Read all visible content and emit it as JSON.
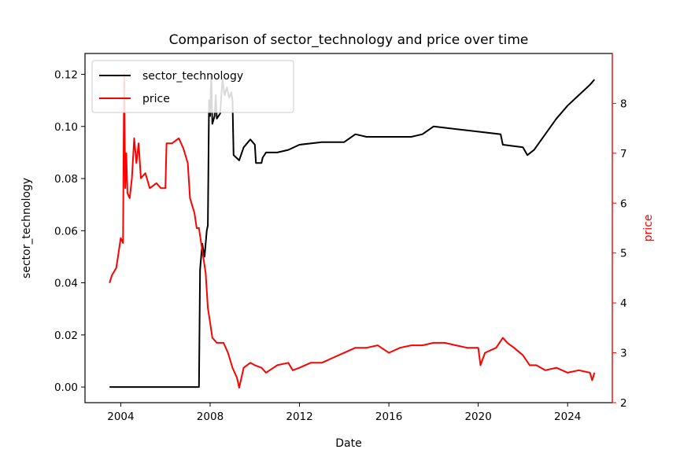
{
  "chart_data": {
    "type": "line",
    "title": "Comparison of sector_technology and price over time",
    "xlabel": "Date",
    "ylabel_left": "sector_technology",
    "ylabel_right": "price",
    "xlim": [
      2002.4,
      2026.0
    ],
    "ylim_left": [
      -0.006,
      0.128
    ],
    "ylim_right": [
      2.0,
      9.0
    ],
    "x_ticks": [
      2004,
      2008,
      2012,
      2016,
      2020,
      2024
    ],
    "x_tick_labels": [
      "2004",
      "2008",
      "2012",
      "2016",
      "2020",
      "2024"
    ],
    "y_left_ticks": [
      0.0,
      0.02,
      0.04,
      0.06,
      0.08,
      0.1,
      0.12
    ],
    "y_left_tick_labels": [
      "0.00",
      "0.02",
      "0.04",
      "0.06",
      "0.08",
      "0.10",
      "0.12"
    ],
    "y_right_ticks": [
      2,
      3,
      4,
      5,
      6,
      7,
      8
    ],
    "y_right_tick_labels": [
      "2",
      "3",
      "4",
      "5",
      "6",
      "7",
      "8"
    ],
    "grid": false,
    "legend_position": "top-left",
    "colors": {
      "sector_technology": "#000000",
      "price": "#ff0000",
      "right_axis": "#ff0000"
    },
    "series": [
      {
        "name": "sector_technology",
        "axis": "left",
        "color": "#000000",
        "points": [
          [
            2003.5,
            0.0
          ],
          [
            2007.5,
            0.0
          ],
          [
            2007.55,
            0.045
          ],
          [
            2007.65,
            0.055
          ],
          [
            2007.75,
            0.05
          ],
          [
            2007.85,
            0.06
          ],
          [
            2007.9,
            0.062
          ],
          [
            2007.95,
            0.11
          ],
          [
            2008.0,
            0.104
          ],
          [
            2008.05,
            0.12
          ],
          [
            2008.1,
            0.101
          ],
          [
            2008.2,
            0.104
          ],
          [
            2008.25,
            0.112
          ],
          [
            2008.3,
            0.103
          ],
          [
            2008.45,
            0.105
          ],
          [
            2008.55,
            0.118
          ],
          [
            2008.65,
            0.112
          ],
          [
            2008.75,
            0.115
          ],
          [
            2008.85,
            0.111
          ],
          [
            2008.95,
            0.113
          ],
          [
            2009.0,
            0.11
          ],
          [
            2009.05,
            0.089
          ],
          [
            2009.3,
            0.087
          ],
          [
            2009.5,
            0.092
          ],
          [
            2009.8,
            0.095
          ],
          [
            2010.0,
            0.093
          ],
          [
            2010.05,
            0.086
          ],
          [
            2010.3,
            0.086
          ],
          [
            2010.35,
            0.088
          ],
          [
            2010.5,
            0.09
          ],
          [
            2011.0,
            0.09
          ],
          [
            2011.5,
            0.091
          ],
          [
            2012.0,
            0.093
          ],
          [
            2013.0,
            0.094
          ],
          [
            2014.0,
            0.094
          ],
          [
            2014.5,
            0.097
          ],
          [
            2015.0,
            0.096
          ],
          [
            2016.0,
            0.096
          ],
          [
            2017.0,
            0.096
          ],
          [
            2017.5,
            0.097
          ],
          [
            2018.0,
            0.1
          ],
          [
            2019.0,
            0.099
          ],
          [
            2020.0,
            0.098
          ],
          [
            2021.0,
            0.097
          ],
          [
            2021.1,
            0.093
          ],
          [
            2022.0,
            0.092
          ],
          [
            2022.2,
            0.089
          ],
          [
            2022.5,
            0.091
          ],
          [
            2023.0,
            0.097
          ],
          [
            2023.5,
            0.103
          ],
          [
            2024.0,
            0.108
          ],
          [
            2024.5,
            0.112
          ],
          [
            2025.0,
            0.116
          ],
          [
            2025.2,
            0.118
          ]
        ]
      },
      {
        "name": "price",
        "axis": "right",
        "color": "#ff0000",
        "points": [
          [
            2003.5,
            4.4
          ],
          [
            2003.6,
            4.55
          ],
          [
            2003.8,
            4.7
          ],
          [
            2003.9,
            5.0
          ],
          [
            2004.0,
            5.3
          ],
          [
            2004.1,
            5.2
          ],
          [
            2004.15,
            8.6
          ],
          [
            2004.2,
            6.3
          ],
          [
            2004.25,
            7.0
          ],
          [
            2004.3,
            6.2
          ],
          [
            2004.4,
            6.1
          ],
          [
            2004.5,
            6.5
          ],
          [
            2004.6,
            7.3
          ],
          [
            2004.7,
            6.8
          ],
          [
            2004.8,
            7.2
          ],
          [
            2004.9,
            6.5
          ],
          [
            2005.1,
            6.6
          ],
          [
            2005.3,
            6.3
          ],
          [
            2005.6,
            6.4
          ],
          [
            2005.8,
            6.3
          ],
          [
            2006.0,
            6.3
          ],
          [
            2006.05,
            7.2
          ],
          [
            2006.3,
            7.2
          ],
          [
            2006.6,
            7.3
          ],
          [
            2006.8,
            7.1
          ],
          [
            2007.0,
            6.8
          ],
          [
            2007.1,
            6.1
          ],
          [
            2007.3,
            5.8
          ],
          [
            2007.4,
            5.5
          ],
          [
            2007.5,
            5.5
          ],
          [
            2007.6,
            5.2
          ],
          [
            2007.7,
            4.9
          ],
          [
            2007.8,
            4.6
          ],
          [
            2007.9,
            3.9
          ],
          [
            2008.0,
            3.6
          ],
          [
            2008.1,
            3.3
          ],
          [
            2008.3,
            3.2
          ],
          [
            2008.6,
            3.2
          ],
          [
            2008.8,
            3.0
          ],
          [
            2009.0,
            2.7
          ],
          [
            2009.2,
            2.5
          ],
          [
            2009.3,
            2.3
          ],
          [
            2009.5,
            2.7
          ],
          [
            2009.8,
            2.8
          ],
          [
            2010.0,
            2.75
          ],
          [
            2010.3,
            2.7
          ],
          [
            2010.5,
            2.6
          ],
          [
            2011.0,
            2.75
          ],
          [
            2011.5,
            2.8
          ],
          [
            2011.7,
            2.65
          ],
          [
            2012.0,
            2.7
          ],
          [
            2012.5,
            2.8
          ],
          [
            2013.0,
            2.8
          ],
          [
            2013.5,
            2.9
          ],
          [
            2014.0,
            3.0
          ],
          [
            2014.5,
            3.1
          ],
          [
            2015.0,
            3.1
          ],
          [
            2015.5,
            3.15
          ],
          [
            2016.0,
            3.0
          ],
          [
            2016.5,
            3.1
          ],
          [
            2017.0,
            3.15
          ],
          [
            2017.5,
            3.15
          ],
          [
            2018.0,
            3.2
          ],
          [
            2018.5,
            3.2
          ],
          [
            2019.0,
            3.15
          ],
          [
            2019.5,
            3.1
          ],
          [
            2020.0,
            3.1
          ],
          [
            2020.1,
            2.75
          ],
          [
            2020.3,
            3.0
          ],
          [
            2020.8,
            3.1
          ],
          [
            2021.1,
            3.3
          ],
          [
            2021.3,
            3.2
          ],
          [
            2021.6,
            3.1
          ],
          [
            2022.0,
            2.95
          ],
          [
            2022.3,
            2.75
          ],
          [
            2022.6,
            2.75
          ],
          [
            2023.0,
            2.65
          ],
          [
            2023.5,
            2.7
          ],
          [
            2024.0,
            2.6
          ],
          [
            2024.5,
            2.65
          ],
          [
            2025.0,
            2.6
          ],
          [
            2025.1,
            2.45
          ],
          [
            2025.2,
            2.6
          ]
        ]
      }
    ]
  }
}
